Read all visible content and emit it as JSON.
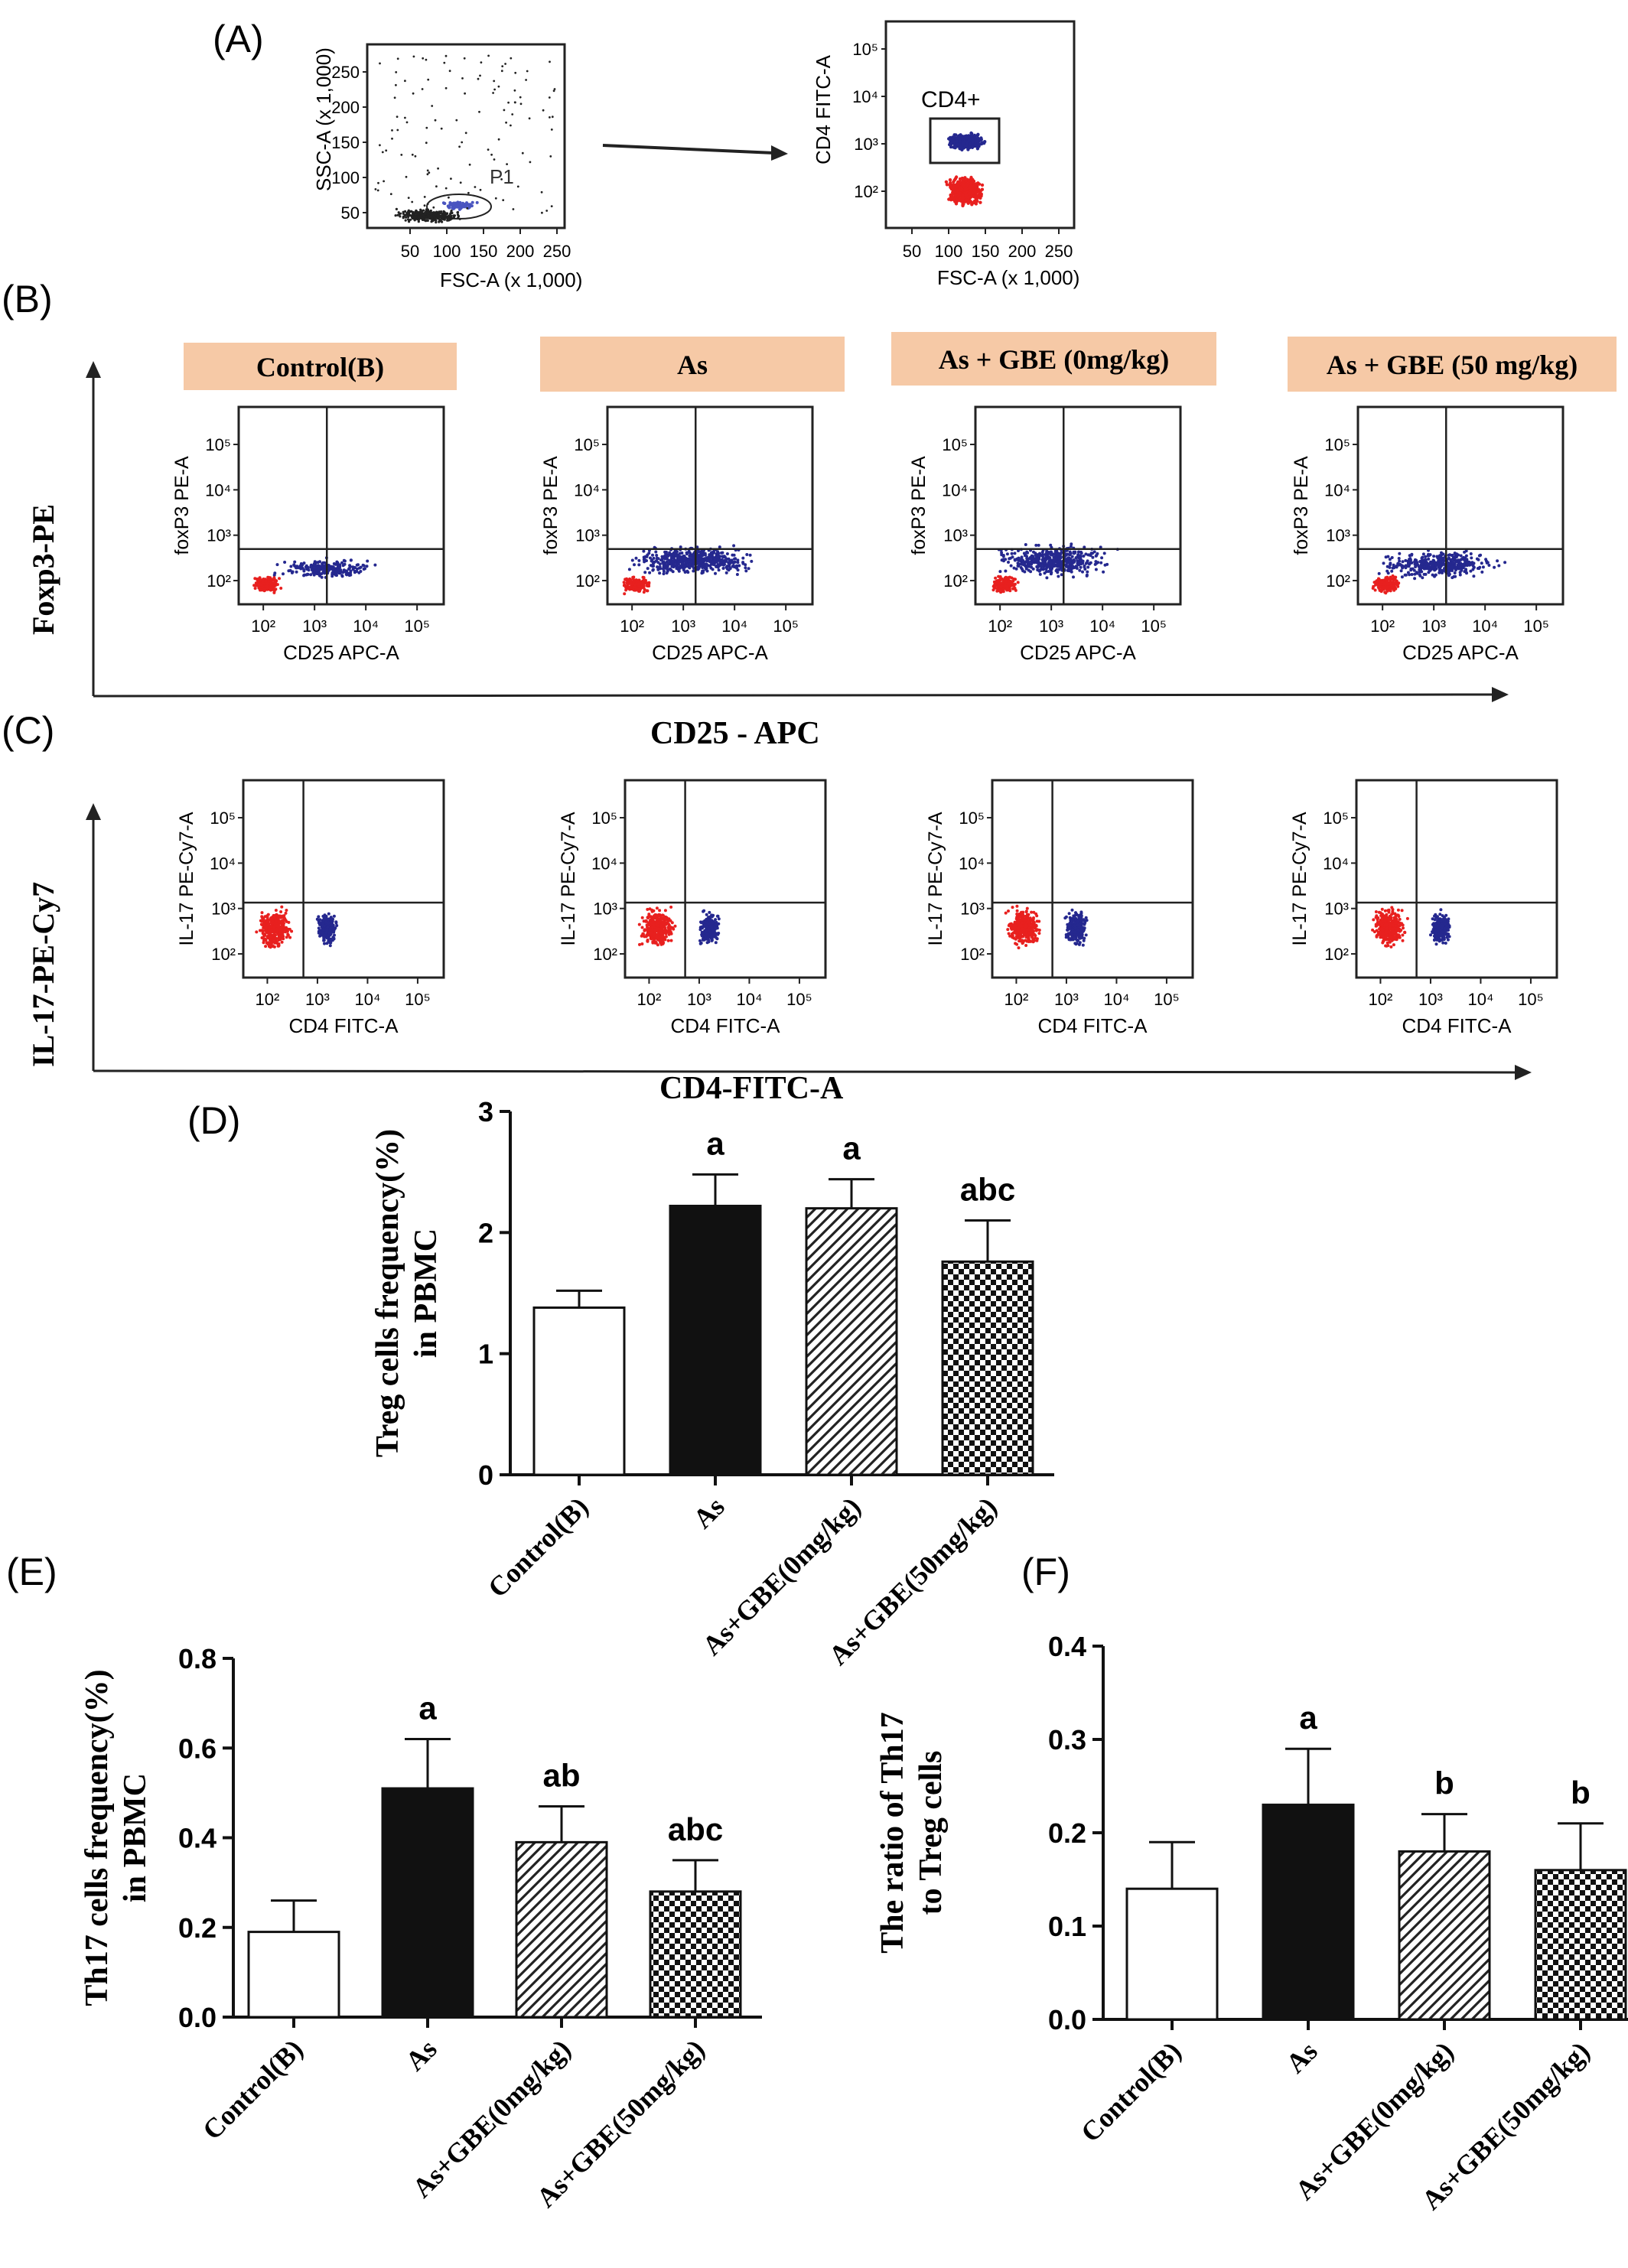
{
  "panels": {
    "a": {
      "label": "(A)",
      "scatter_ylabel": "SSC-A (x 1,000)",
      "scatter_xlabel": "FSC-A (x 1,000)",
      "scatter_yticks": [
        "50",
        "100",
        "150",
        "200",
        "250"
      ],
      "scatter_xticks": [
        "50",
        "100",
        "150",
        "200",
        "250"
      ],
      "gate_label": "P1",
      "cd4_ylabel": "CD4 FITC-A",
      "cd4_xlabel": "FSC-A (x 1,000)",
      "cd4_yticks": [
        "10²",
        "10³",
        "10⁴",
        "10⁵"
      ],
      "cd4_xticks": [
        "50",
        "100",
        "150",
        "200",
        "250"
      ],
      "cd4_gate": "CD4+"
    },
    "b": {
      "label": "(B)",
      "y_axis_title": "Foxp3-PE",
      "x_axis_title": "CD25 - APC",
      "plot_ylabel": "foxP3 PE-A",
      "plot_xlabel": "CD25 APC-A",
      "plot_ticks": [
        "10²",
        "10³",
        "10⁴",
        "10⁵"
      ]
    },
    "c": {
      "label": "(C)",
      "y_axis_title": "IL-17-PE-Cy7",
      "x_axis_title": "CD4-FITC-A",
      "plot_ylabel": "IL-17 PE-Cy7-A",
      "plot_xlabel": "CD4 FITC-A",
      "plot_ticks": [
        "10²",
        "10³",
        "10⁴",
        "10⁵"
      ]
    },
    "d": {
      "label": "(D)"
    },
    "e": {
      "label": "(E)"
    },
    "f": {
      "label": "(F)"
    }
  },
  "group_headers": [
    "Control(B)",
    "As",
    "As + GBE (0mg/kg)",
    "As + GBE (50 mg/kg)"
  ],
  "colors": {
    "header_bg": "#f6c9a6",
    "blue_dots": "#25288f",
    "red_dots": "#e8201f",
    "bar_solid": "#111111"
  },
  "chart_data": [
    {
      "type": "bar",
      "panel": "D",
      "ylabel": "Treg cells frequency(%) in PBMC",
      "categories": [
        "Control(B)",
        "As",
        "As+GBE(0mg/kg)",
        "As+GBE(50mg/kg)"
      ],
      "values": [
        1.38,
        2.22,
        2.2,
        1.76
      ],
      "errors": [
        0.14,
        0.26,
        0.24,
        0.34
      ],
      "annotations": [
        "",
        "a",
        "a",
        "abc"
      ],
      "ylim": [
        0,
        3
      ],
      "yticks": [
        "0",
        "1",
        "2",
        "3"
      ]
    },
    {
      "type": "bar",
      "panel": "E",
      "ylabel": "Th17 cells frequency(%) in PBMC",
      "categories": [
        "Control(B)",
        "As",
        "As+GBE(0mg/kg)",
        "As+GBE(50mg/kg)"
      ],
      "values": [
        0.19,
        0.51,
        0.39,
        0.28
      ],
      "errors": [
        0.07,
        0.11,
        0.08,
        0.07
      ],
      "annotations": [
        "",
        "a",
        "ab",
        "abc"
      ],
      "ylim": [
        0,
        0.8
      ],
      "yticks": [
        "0.0",
        "0.2",
        "0.4",
        "0.6",
        "0.8"
      ]
    },
    {
      "type": "bar",
      "panel": "F",
      "ylabel": "The ratio of Th17 to Treg cells",
      "categories": [
        "Control(B)",
        "As",
        "As+GBE(0mg/kg)",
        "As+GBE(50mg/kg)"
      ],
      "values": [
        0.14,
        0.23,
        0.18,
        0.16
      ],
      "errors": [
        0.05,
        0.06,
        0.04,
        0.05
      ],
      "annotations": [
        "",
        "a",
        "b",
        "b"
      ],
      "ylim": [
        0,
        0.4
      ],
      "yticks": [
        "0.0",
        "0.1",
        "0.2",
        "0.3",
        "0.4"
      ]
    }
  ]
}
